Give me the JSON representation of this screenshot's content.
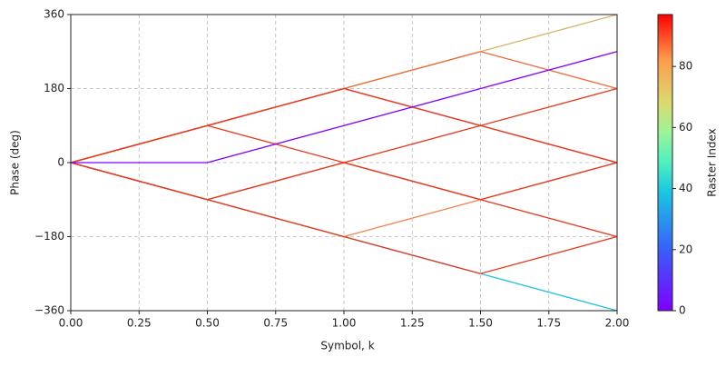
{
  "chart_data": {
    "type": "line",
    "xlabel": "Symbol, k",
    "ylabel": "Phase (deg)",
    "x": [
      0,
      0.5,
      1,
      1.5,
      2
    ],
    "series": [
      {
        "color": "#1cc4e0",
        "values": [
          0,
          -90,
          -180,
          -270,
          -360
        ]
      },
      {
        "color": "#d4b66a",
        "values": [
          0,
          90,
          180,
          270,
          360
        ]
      },
      {
        "color": "#ef8552",
        "values": [
          0,
          -90,
          -180,
          -90,
          0
        ]
      },
      {
        "color": "#ee6a3a",
        "values": [
          0,
          90,
          180,
          270,
          180
        ]
      },
      {
        "color": "#e8381e",
        "values": [
          0,
          90,
          180,
          90,
          180
        ]
      },
      {
        "color": "#e8381e",
        "values": [
          0,
          90,
          0,
          90,
          0
        ]
      },
      {
        "color": "#e8381e",
        "values": [
          0,
          -90,
          0,
          -90,
          0
        ]
      },
      {
        "color": "#e8381e",
        "values": [
          0,
          -90,
          -180,
          -270,
          -180
        ]
      },
      {
        "color": "#e8381e",
        "values": [
          0,
          -90,
          0,
          -90,
          -180
        ]
      },
      {
        "color": "#e8381e",
        "values": [
          0,
          90,
          180,
          90,
          0
        ]
      },
      {
        "color": "#8000ff",
        "values": [
          0,
          0,
          90,
          180,
          270
        ]
      }
    ],
    "xlim": [
      0,
      2
    ],
    "xticks": [
      {
        "value": 0,
        "label": "0.00"
      },
      {
        "value": 0.25,
        "label": "0.25"
      },
      {
        "value": 0.5,
        "label": "0.50"
      },
      {
        "value": 0.75,
        "label": "0.75"
      },
      {
        "value": 1,
        "label": "1.00"
      },
      {
        "value": 1.25,
        "label": "1.25"
      },
      {
        "value": 1.5,
        "label": "1.50"
      },
      {
        "value": 1.75,
        "label": "1.75"
      },
      {
        "value": 2,
        "label": "2.00"
      }
    ],
    "ylim": [
      -360,
      360
    ],
    "yticks": [
      {
        "value": -360,
        "label": "−360"
      },
      {
        "value": -180,
        "label": "−180"
      },
      0,
      180,
      360
    ],
    "grid": true,
    "colorbar": {
      "label": "Raster Index",
      "lim": [
        0,
        97
      ],
      "ticks": [
        0,
        20,
        40,
        60,
        80
      ]
    }
  }
}
